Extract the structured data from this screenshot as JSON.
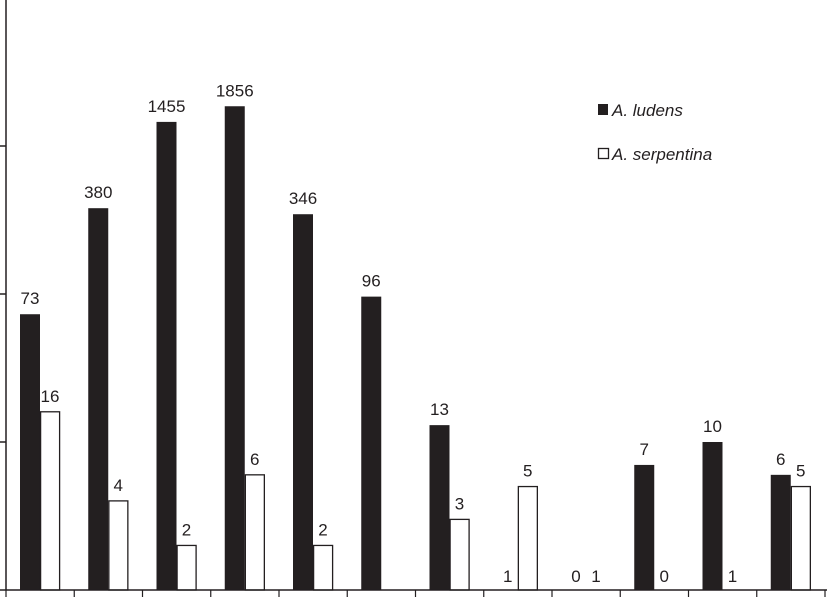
{
  "chart_data": {
    "type": "bar",
    "y_scale": "log",
    "ylim": [
      1,
      10000
    ],
    "y_ticks": [
      1,
      10,
      100,
      1000
    ],
    "grid": false,
    "legend_position": "top-right",
    "categories_count": 12,
    "series": [
      {
        "name": "A. ludens",
        "color": "#231f20",
        "values": [
          73,
          380,
          1455,
          1856,
          346,
          96,
          13,
          1,
          0,
          7,
          10,
          6
        ]
      },
      {
        "name": "A. serpentina",
        "color": "#ffffff",
        "values": [
          16,
          4,
          2,
          6,
          2,
          null,
          3,
          5,
          1,
          0,
          1,
          5
        ]
      }
    ],
    "data_labels": [
      [
        "73",
        "380",
        "1455",
        "1856",
        "346",
        "96",
        "13",
        "1",
        "0",
        "7",
        "10",
        "6"
      ],
      [
        "16",
        "4",
        "2",
        "6",
        "2",
        "",
        "3",
        "5",
        "1",
        "0",
        "1",
        "5"
      ]
    ]
  }
}
